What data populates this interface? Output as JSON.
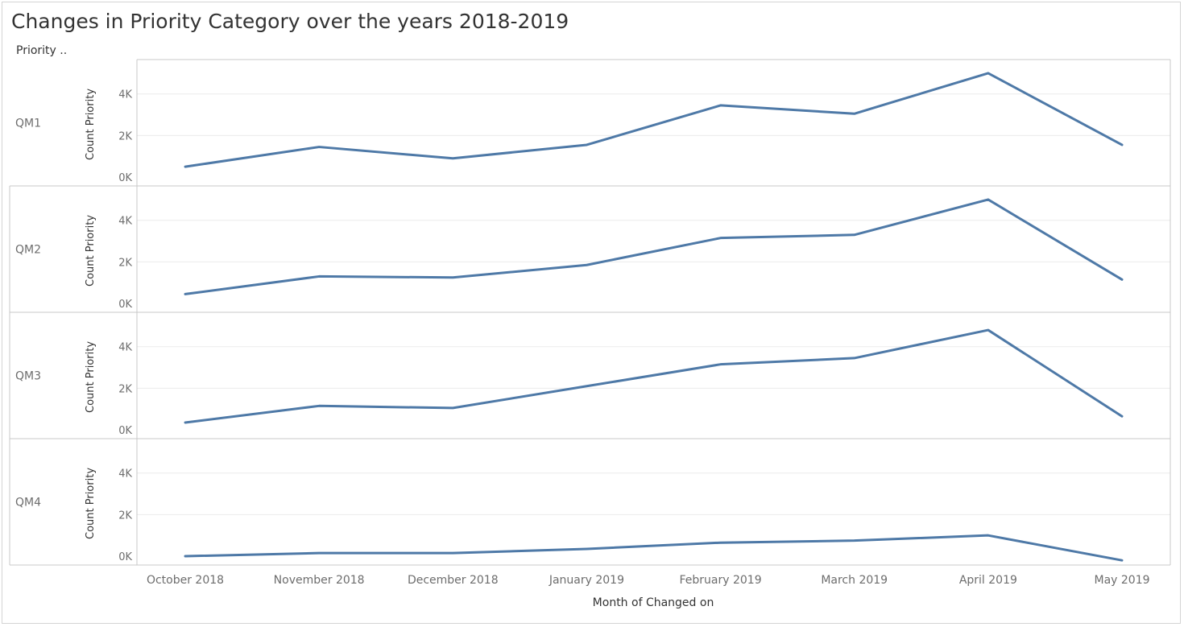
{
  "title": "Changes in Priority Category over the years 2018-2019",
  "row_header": "Priority ..",
  "colors": {
    "line": "#4e79a7",
    "grid": "#ececec",
    "border": "#c8c8c8"
  },
  "chart_data": {
    "type": "line",
    "xlabel": "Month of Changed on",
    "ylabel": "Count Priority",
    "ylim": [
      0,
      5500
    ],
    "yticks": [
      0,
      2000,
      4000
    ],
    "ytick_labels": [
      "0K",
      "2K",
      "4K"
    ],
    "categories": [
      "October 2018",
      "November 2018",
      "December 2018",
      "January 2019",
      "February 2019",
      "March 2019",
      "April 2019",
      "May 2019"
    ],
    "series": [
      {
        "name": "QM1",
        "values": [
          500,
          1450,
          900,
          1550,
          3450,
          3050,
          5000,
          1550
        ]
      },
      {
        "name": "QM2",
        "values": [
          450,
          1300,
          1250,
          1850,
          3150,
          3300,
          5000,
          1150
        ]
      },
      {
        "name": "QM3",
        "values": [
          350,
          1150,
          1050,
          2100,
          3150,
          3450,
          4800,
          650
        ]
      },
      {
        "name": "QM4",
        "values": [
          0,
          150,
          150,
          350,
          650,
          750,
          1000,
          -200
        ]
      }
    ]
  }
}
